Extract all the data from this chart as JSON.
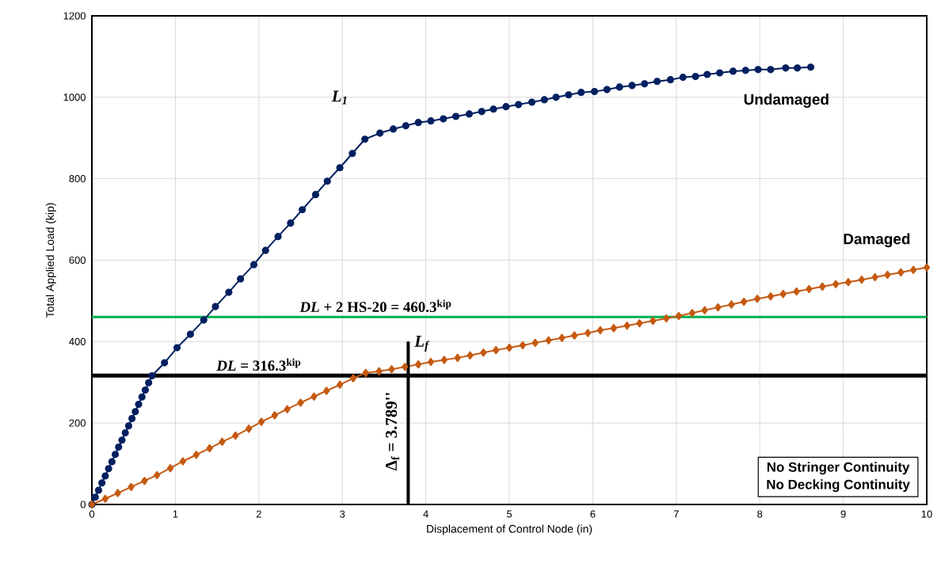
{
  "chart_data": {
    "type": "line",
    "xlabel": "Displacement of Control Node (in)",
    "ylabel": "Total Applied Load (kip)",
    "xlim": [
      0,
      10
    ],
    "ylim": [
      0,
      1200
    ],
    "xticks": [
      0,
      1,
      2,
      3,
      4,
      5,
      6,
      7,
      8,
      9,
      10
    ],
    "yticks": [
      0,
      200,
      400,
      600,
      800,
      1000,
      1200
    ],
    "grid": true,
    "series": [
      {
        "name": "Undamaged",
        "color": "#002060",
        "marker": "circle",
        "x": [
          0,
          0.04,
          0.08,
          0.12,
          0.16,
          0.2,
          0.24,
          0.28,
          0.32,
          0.36,
          0.4,
          0.44,
          0.48,
          0.52,
          0.56,
          0.6,
          0.64,
          0.68,
          0.72,
          0.87,
          1.02,
          1.18,
          1.34,
          1.48,
          1.64,
          1.78,
          1.94,
          2.08,
          2.23,
          2.38,
          2.52,
          2.68,
          2.82,
          2.97,
          3.12,
          3.27,
          3.45,
          3.61,
          3.76,
          3.91,
          4.06,
          4.21,
          4.36,
          4.52,
          4.67,
          4.81,
          4.96,
          5.11,
          5.27,
          5.42,
          5.56,
          5.71,
          5.86,
          6.02,
          6.17,
          6.32,
          6.47,
          6.62,
          6.77,
          6.93,
          7.08,
          7.23,
          7.37,
          7.52,
          7.68,
          7.83,
          7.98,
          8.13,
          8.31,
          8.45,
          8.61
        ],
        "values": [
          0,
          18,
          35,
          53,
          70,
          88,
          105,
          123,
          141,
          158,
          176,
          193,
          211,
          228,
          246,
          264,
          281,
          299,
          316,
          348,
          385,
          418,
          453,
          486,
          521,
          554,
          589,
          624,
          658,
          691,
          724,
          761,
          794,
          827,
          862,
          897,
          912,
          922,
          930,
          938,
          942,
          947,
          953,
          959,
          965,
          971,
          977,
          982,
          988,
          994,
          1000,
          1006,
          1012,
          1014,
          1019,
          1025,
          1029,
          1033,
          1039,
          1043,
          1049,
          1051,
          1056,
          1060,
          1064,
          1066,
          1068,
          1068,
          1072,
          1072,
          1074
        ]
      },
      {
        "name": "Damaged",
        "color": "#c55a11",
        "marker": "diamond",
        "x": [
          0,
          0.16,
          0.31,
          0.47,
          0.63,
          0.78,
          0.94,
          1.09,
          1.25,
          1.41,
          1.56,
          1.72,
          1.88,
          2.03,
          2.19,
          2.34,
          2.5,
          2.66,
          2.81,
          2.97,
          3.13,
          3.28,
          3.44,
          3.59,
          3.75,
          3.91,
          4.06,
          4.22,
          4.38,
          4.53,
          4.69,
          4.84,
          5,
          5.16,
          5.31,
          5.47,
          5.63,
          5.78,
          5.94,
          6.09,
          6.25,
          6.41,
          6.56,
          6.72,
          6.88,
          7.03,
          7.19,
          7.34,
          7.5,
          7.66,
          7.81,
          7.97,
          8.13,
          8.28,
          8.44,
          8.59,
          8.75,
          8.91,
          9.06,
          9.22,
          9.38,
          9.53,
          9.69,
          9.84,
          10
        ],
        "values": [
          0,
          14,
          28,
          43,
          58,
          72,
          89,
          106,
          122,
          138,
          154,
          169,
          186,
          203,
          219,
          234,
          250,
          265,
          279,
          294,
          310,
          323,
          327,
          332,
          338,
          344,
          350,
          355,
          360,
          366,
          373,
          379,
          385,
          391,
          397,
          403,
          409,
          415,
          421,
          428,
          433,
          439,
          445,
          451,
          457,
          463,
          470,
          477,
          484,
          491,
          498,
          505,
          511,
          517,
          523,
          529,
          535,
          541,
          546,
          552,
          558,
          564,
          570,
          576,
          582
        ]
      },
      {
        "color": "#000000",
        "marker": "none",
        "x": [
          3.789,
          3.789
        ],
        "values": [
          0,
          400
        ]
      }
    ],
    "ref_lines": [
      {
        "axis": "y",
        "value": 460.3,
        "label": "*DL* + 2 HS-20 = 460.3$^{kip}$",
        "color": "#00b050"
      },
      {
        "axis": "y",
        "value": 316.3,
        "label": "*DL* = 316.3$^{kip}$",
        "color": "#000000"
      }
    ],
    "annotations": [
      "L$_{1}$",
      "L$_{f}$",
      "Δ$_{f}$ = 3.789''",
      "No Stringer Continuity",
      "No Decking Continuity"
    ]
  }
}
